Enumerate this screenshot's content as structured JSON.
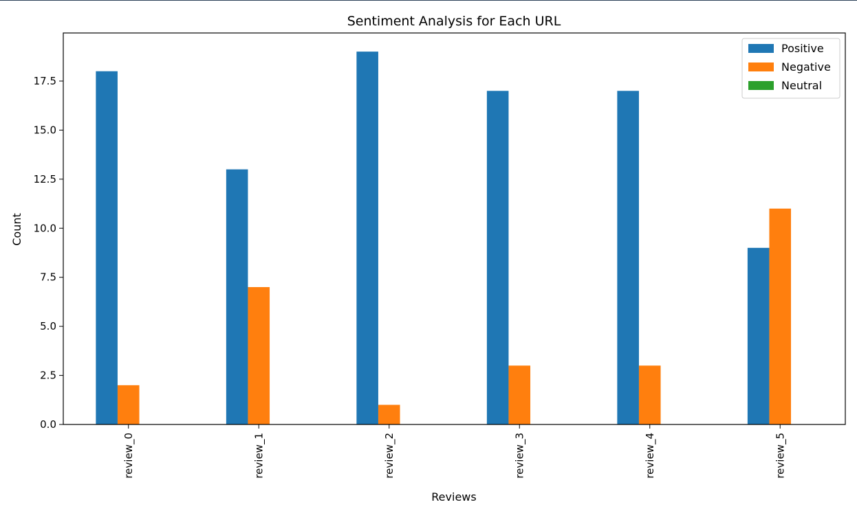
{
  "chart_data": {
    "type": "bar",
    "title": "Sentiment Analysis for Each URL",
    "xlabel": "Reviews",
    "ylabel": "Count",
    "categories": [
      "review_0",
      "review_1",
      "review_2",
      "review_3",
      "review_4",
      "review_5"
    ],
    "series": [
      {
        "name": "Positive",
        "color": "#1f77b4",
        "values": [
          18,
          13,
          19,
          17,
          17,
          9
        ]
      },
      {
        "name": "Negative",
        "color": "#ff7f0e",
        "values": [
          2,
          7,
          1,
          3,
          3,
          11
        ]
      },
      {
        "name": "Neutral",
        "color": "#2ca02c",
        "values": [
          0,
          0,
          0,
          0,
          0,
          0
        ]
      }
    ],
    "ylim": [
      0,
      19.95
    ],
    "yticks": [
      0.0,
      2.5,
      5.0,
      7.5,
      10.0,
      12.5,
      15.0,
      17.5
    ],
    "ytick_labels": [
      "0.0",
      "2.5",
      "5.0",
      "7.5",
      "10.0",
      "12.5",
      "15.0",
      "17.5"
    ],
    "grid": false,
    "legend_position": "top-right"
  }
}
